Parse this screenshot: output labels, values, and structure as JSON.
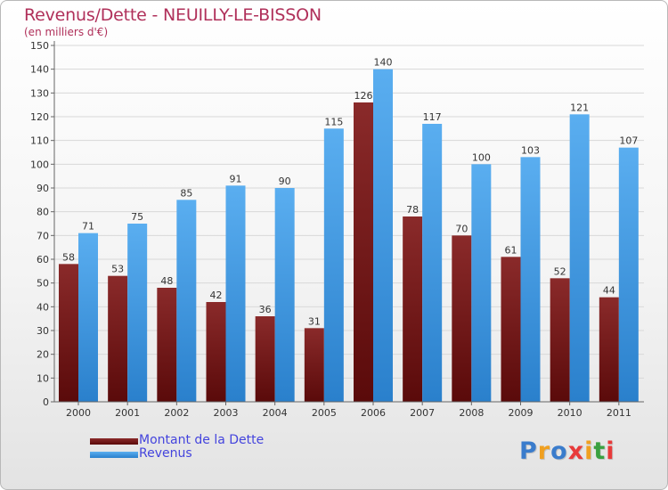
{
  "chart_data": {
    "type": "bar",
    "title": "Revenus/Dette - NEUILLY-LE-BISSON",
    "subtitle": "(en milliers d'€)",
    "categories": [
      "2000",
      "2001",
      "2002",
      "2003",
      "2004",
      "2005",
      "2006",
      "2007",
      "2008",
      "2009",
      "2010",
      "2011"
    ],
    "series": [
      {
        "name": "Montant de la Dette",
        "values": [
          58,
          53,
          48,
          42,
          36,
          31,
          126,
          78,
          70,
          61,
          52,
          44
        ]
      },
      {
        "name": "Revenus",
        "values": [
          71,
          75,
          85,
          91,
          90,
          115,
          140,
          117,
          100,
          103,
          121,
          107
        ]
      }
    ],
    "ylim": [
      0,
      150
    ],
    "yticks": [
      0,
      10,
      20,
      30,
      40,
      50,
      60,
      70,
      80,
      90,
      100,
      110,
      120,
      130,
      140,
      150
    ],
    "grid": true,
    "legend": "bottom-left"
  },
  "colors": {
    "dette_top": "#8a2a2a",
    "dette_bottom": "#5a0a0a",
    "revenus_top": "#5aaef0",
    "revenus_bottom": "#2a80cc",
    "title": "#b0305a",
    "legend_text": "#4444dd"
  },
  "logo": {
    "letters": [
      "P",
      "r",
      "o",
      "x",
      "i",
      "t",
      "i"
    ],
    "colors": [
      "#3a7ccc",
      "#f0a020",
      "#3a7ccc",
      "#e83a3a",
      "#f0a020",
      "#3aa040",
      "#e83a3a"
    ]
  }
}
